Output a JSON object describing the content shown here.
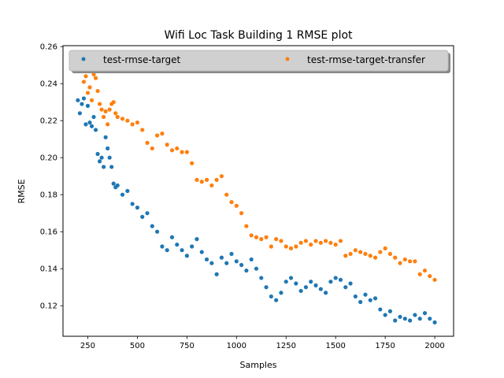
{
  "chart_data": {
    "type": "scatter",
    "title": "Wifi Loc Task Building 1 RMSE plot",
    "xlabel": "Samples",
    "ylabel": "RMSE",
    "xlim": [
      125,
      2095
    ],
    "ylim": [
      0.1035,
      0.2605
    ],
    "xticks": [
      250,
      500,
      750,
      1000,
      1250,
      1500,
      1750,
      2000
    ],
    "yticks": [
      0.12,
      0.14,
      0.16,
      0.18,
      0.2,
      0.22,
      0.24,
      0.26
    ],
    "grid": false,
    "legend": {
      "position": "top",
      "columns": 2
    },
    "series": [
      {
        "name": "test-rmse-target",
        "color": "#1f77b4",
        "x": [
          200,
          210,
          220,
          230,
          240,
          250,
          260,
          270,
          280,
          290,
          300,
          310,
          320,
          330,
          340,
          350,
          360,
          370,
          380,
          390,
          400,
          425,
          450,
          475,
          500,
          525,
          550,
          575,
          600,
          625,
          650,
          675,
          700,
          725,
          750,
          775,
          800,
          825,
          850,
          875,
          900,
          925,
          950,
          975,
          1000,
          1025,
          1050,
          1075,
          1100,
          1125,
          1150,
          1175,
          1200,
          1225,
          1250,
          1275,
          1300,
          1325,
          1350,
          1375,
          1400,
          1425,
          1450,
          1475,
          1500,
          1525,
          1550,
          1575,
          1600,
          1625,
          1650,
          1675,
          1700,
          1725,
          1750,
          1775,
          1800,
          1825,
          1850,
          1875,
          1900,
          1925,
          1950,
          1975,
          2000
        ],
        "y": [
          0.231,
          0.224,
          0.229,
          0.232,
          0.218,
          0.228,
          0.219,
          0.217,
          0.222,
          0.215,
          0.202,
          0.198,
          0.2,
          0.195,
          0.211,
          0.205,
          0.2,
          0.195,
          0.186,
          0.184,
          0.185,
          0.18,
          0.182,
          0.175,
          0.173,
          0.168,
          0.17,
          0.163,
          0.16,
          0.152,
          0.15,
          0.157,
          0.153,
          0.15,
          0.147,
          0.152,
          0.156,
          0.149,
          0.145,
          0.143,
          0.137,
          0.146,
          0.143,
          0.148,
          0.144,
          0.142,
          0.139,
          0.145,
          0.14,
          0.135,
          0.13,
          0.125,
          0.123,
          0.127,
          0.133,
          0.135,
          0.132,
          0.128,
          0.13,
          0.133,
          0.131,
          0.129,
          0.127,
          0.133,
          0.135,
          0.134,
          0.13,
          0.132,
          0.125,
          0.122,
          0.126,
          0.123,
          0.124,
          0.118,
          0.115,
          0.117,
          0.112,
          0.114,
          0.113,
          0.112,
          0.115,
          0.113,
          0.116,
          0.113,
          0.111
        ]
      },
      {
        "name": "test-rmse-target-transfer",
        "color": "#ff7f0e",
        "x": [
          200,
          210,
          220,
          230,
          240,
          250,
          260,
          270,
          280,
          290,
          300,
          310,
          320,
          330,
          340,
          350,
          360,
          370,
          380,
          390,
          400,
          425,
          450,
          475,
          500,
          525,
          550,
          575,
          600,
          625,
          650,
          675,
          700,
          725,
          750,
          775,
          800,
          825,
          850,
          875,
          900,
          925,
          950,
          975,
          1000,
          1025,
          1050,
          1075,
          1100,
          1125,
          1150,
          1175,
          1200,
          1225,
          1250,
          1275,
          1300,
          1325,
          1350,
          1375,
          1400,
          1425,
          1450,
          1475,
          1500,
          1525,
          1550,
          1575,
          1600,
          1625,
          1650,
          1675,
          1700,
          1725,
          1750,
          1775,
          1800,
          1825,
          1850,
          1875,
          1900,
          1925,
          1950,
          1975,
          2000
        ],
        "y": [
          0.252,
          0.249,
          0.247,
          0.241,
          0.244,
          0.235,
          0.238,
          0.231,
          0.245,
          0.243,
          0.236,
          0.229,
          0.226,
          0.222,
          0.225,
          0.218,
          0.226,
          0.229,
          0.23,
          0.224,
          0.222,
          0.221,
          0.22,
          0.218,
          0.219,
          0.215,
          0.208,
          0.205,
          0.212,
          0.213,
          0.207,
          0.204,
          0.205,
          0.203,
          0.203,
          0.197,
          0.188,
          0.187,
          0.188,
          0.185,
          0.188,
          0.19,
          0.18,
          0.176,
          0.174,
          0.17,
          0.163,
          0.158,
          0.157,
          0.156,
          0.157,
          0.152,
          0.156,
          0.155,
          0.152,
          0.151,
          0.152,
          0.154,
          0.155,
          0.153,
          0.155,
          0.154,
          0.155,
          0.154,
          0.153,
          0.155,
          0.147,
          0.148,
          0.15,
          0.149,
          0.148,
          0.147,
          0.146,
          0.149,
          0.151,
          0.148,
          0.146,
          0.143,
          0.145,
          0.144,
          0.144,
          0.137,
          0.139,
          0.136,
          0.134
        ]
      }
    ]
  }
}
